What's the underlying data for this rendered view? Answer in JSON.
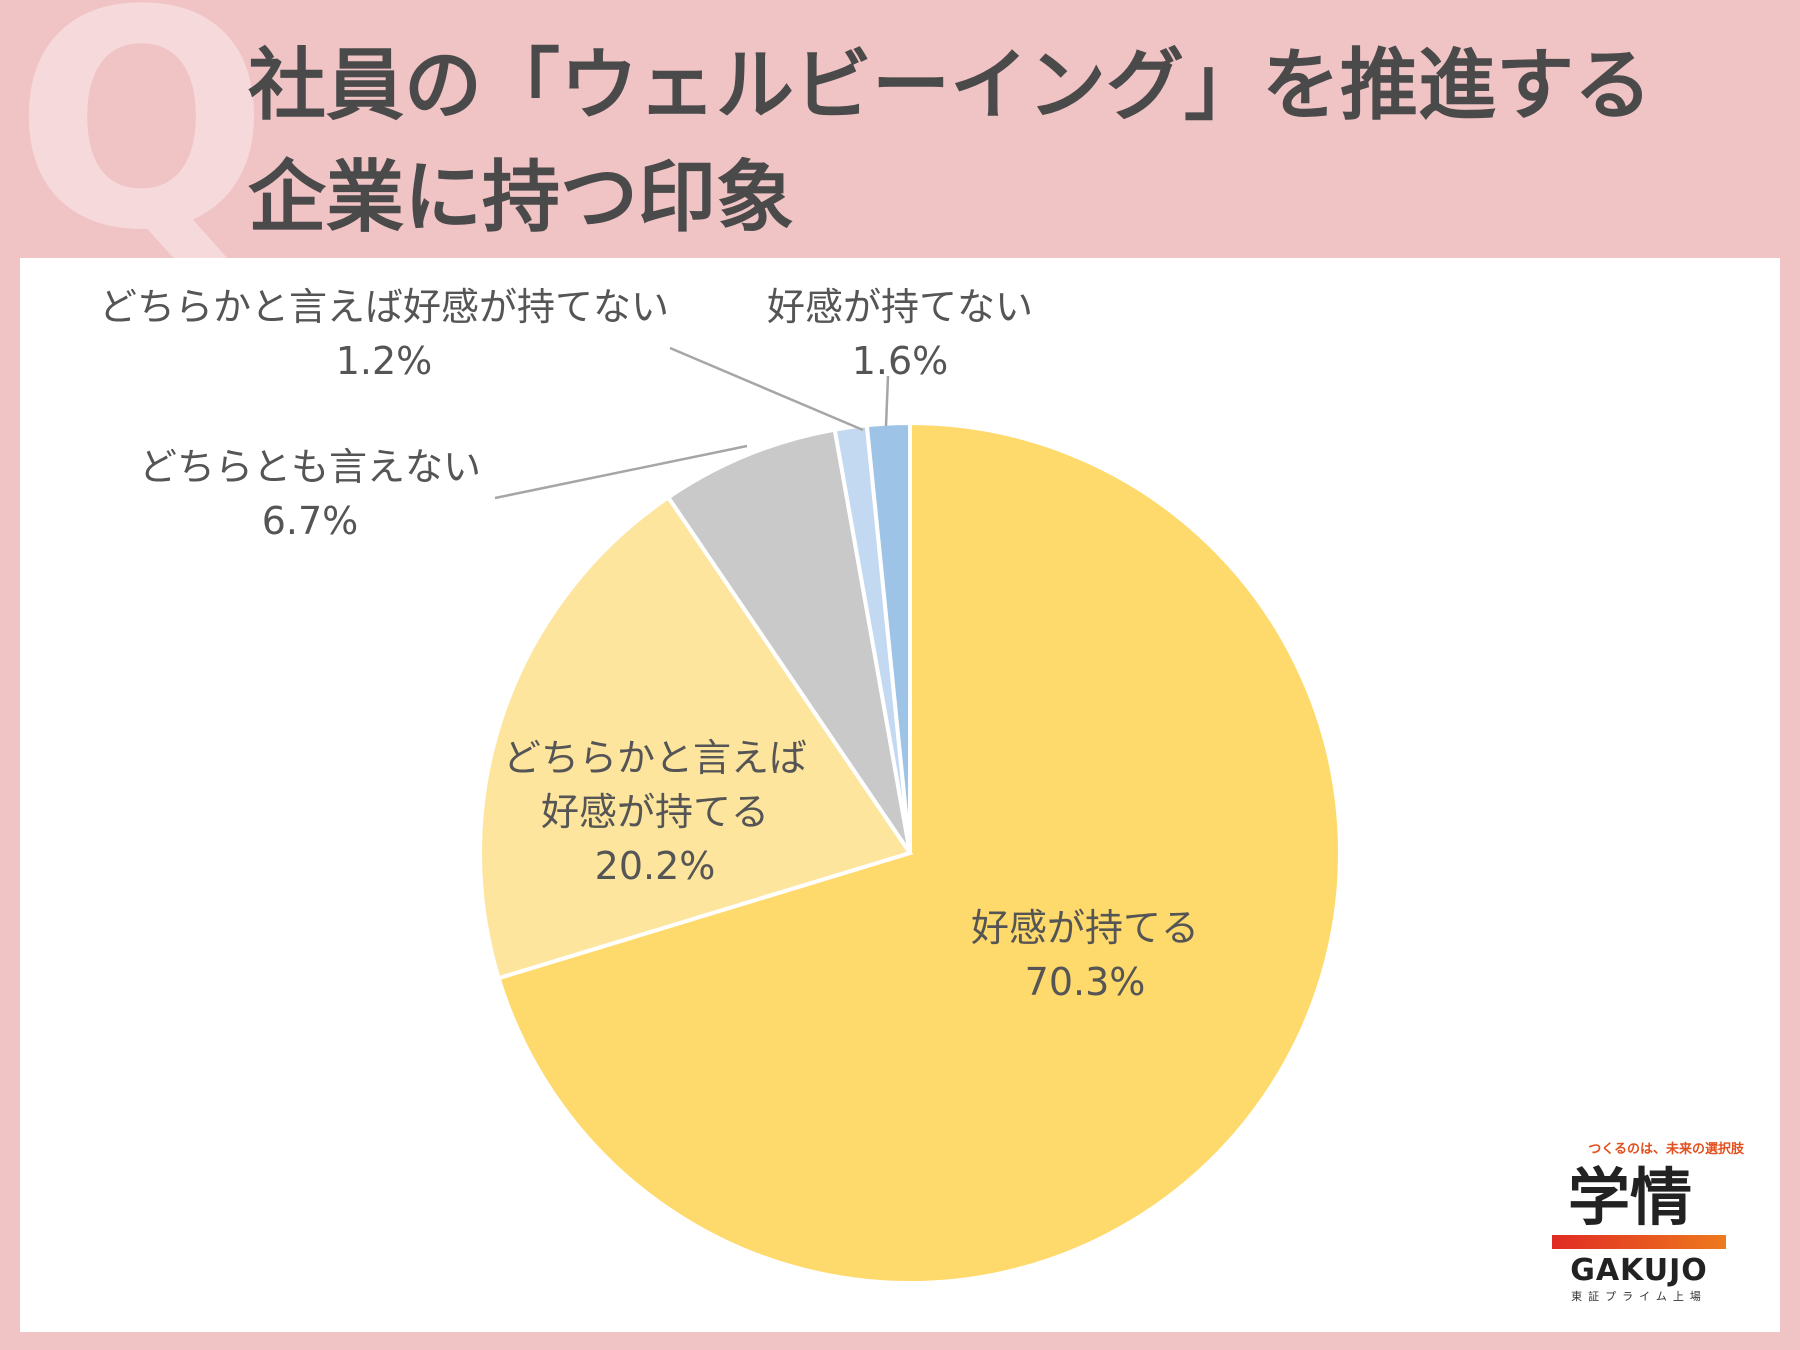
{
  "header": {
    "q_mark": "Q",
    "title_line1": "社員の「ウェルビーイング」を推進する",
    "title_line2": "企業に持つ印象"
  },
  "chart_data": {
    "type": "pie",
    "title": "社員の「ウェルビーイング」を推進する企業に持つ印象",
    "slices": [
      {
        "label_lines": [
          "好感が持てる"
        ],
        "value_label": "70.3%",
        "value": 70.3,
        "color": "#fed96b"
      },
      {
        "label_lines": [
          "どちらかと言えば",
          "好感が持てる"
        ],
        "value_label": "20.2%",
        "value": 20.2,
        "color": "#fee59e"
      },
      {
        "label_lines": [
          "どちらとも言えない"
        ],
        "value_label": "6.7%",
        "value": 6.7,
        "color": "#c9c9c9"
      },
      {
        "label_lines": [
          "どちらかと言えば好感が持てない"
        ],
        "value_label": "1.2%",
        "value": 1.2,
        "color": "#c3d9f1"
      },
      {
        "label_lines": [
          "好感が持てない"
        ],
        "value_label": "1.6%",
        "value": 1.6,
        "color": "#9dc3e6"
      }
    ],
    "start": "12 o'clock",
    "direction": "clockwise",
    "legend": "none"
  },
  "logo": {
    "tagline": "つくるのは、未来の選択肢",
    "mark": "学情",
    "english": "GAKUJO",
    "sub": "東証プライム上場"
  }
}
